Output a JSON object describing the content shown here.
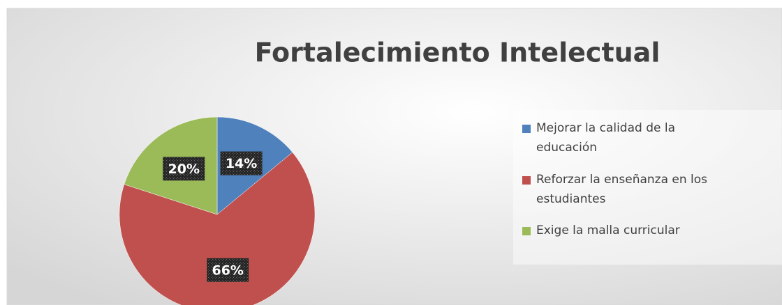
{
  "chart_data": {
    "type": "pie",
    "title": "Fortalecimiento Intelectual",
    "categories": [
      "Mejorar la calidad de la educación",
      "Reforzar la enseñanza en los estudiantes",
      "Exige la malla curricular"
    ],
    "values": [
      14,
      66,
      20
    ],
    "value_labels": [
      "14%",
      "66%",
      "20%"
    ],
    "colors": [
      "#4f81bd",
      "#c0504d",
      "#9bbb59"
    ],
    "legend": "right"
  }
}
